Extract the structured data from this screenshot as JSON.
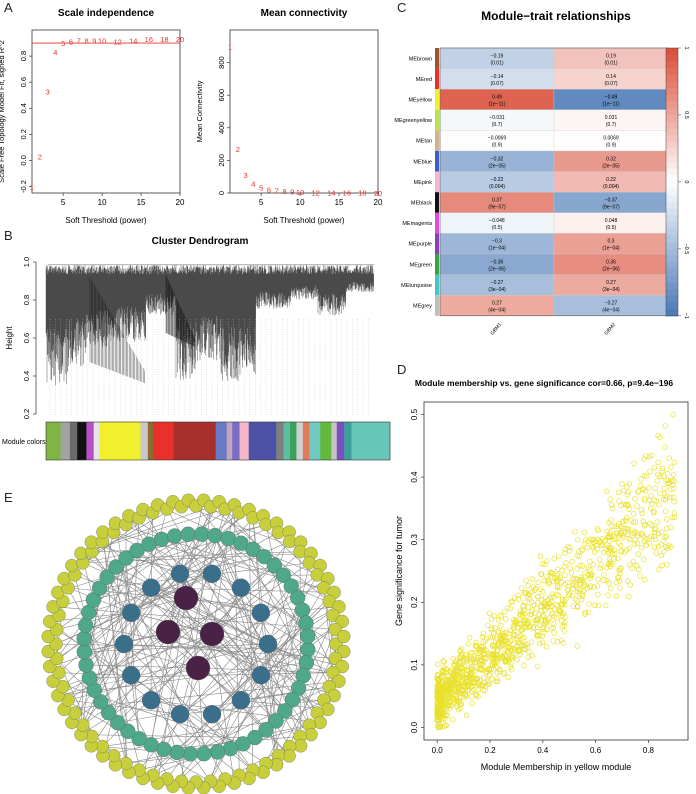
{
  "panel_letters": [
    "A",
    "B",
    "C",
    "D",
    "E"
  ],
  "chart_data": [
    {
      "id": "scale_independence",
      "type": "scatter",
      "title": "Scale independence",
      "xlabel": "Soft Threshold (power)",
      "ylabel": "Scale Free Topology Model Fit, signed R^2",
      "xlim": [
        1,
        20
      ],
      "ylim": [
        -0.25,
        1.0
      ],
      "xticks": [
        "5",
        "10",
        "15",
        "20"
      ],
      "yticks": [
        "-0.2",
        "0.0",
        "0.2",
        "0.4",
        "0.6",
        "0.8"
      ],
      "hline": 0.9,
      "points": [
        {
          "x": 1,
          "y": -0.2,
          "label": "1"
        },
        {
          "x": 2,
          "y": 0.03,
          "label": "2"
        },
        {
          "x": 3,
          "y": 0.53,
          "label": "3"
        },
        {
          "x": 4,
          "y": 0.83,
          "label": "4"
        },
        {
          "x": 5,
          "y": 0.9,
          "label": "5"
        },
        {
          "x": 6,
          "y": 0.91,
          "label": "6"
        },
        {
          "x": 7,
          "y": 0.92,
          "label": "7"
        },
        {
          "x": 8,
          "y": 0.92,
          "label": "8"
        },
        {
          "x": 9,
          "y": 0.92,
          "label": "9"
        },
        {
          "x": 10,
          "y": 0.92,
          "label": "10"
        },
        {
          "x": 12,
          "y": 0.91,
          "label": "12"
        },
        {
          "x": 14,
          "y": 0.92,
          "label": "14"
        },
        {
          "x": 16,
          "y": 0.93,
          "label": "16"
        },
        {
          "x": 18,
          "y": 0.93,
          "label": "18"
        },
        {
          "x": 20,
          "y": 0.93,
          "label": "20"
        }
      ],
      "color": "#e8312a"
    },
    {
      "id": "mean_connectivity",
      "type": "scatter",
      "title": "Mean connectivity",
      "xlabel": "Soft Threshold (power)",
      "ylabel": "Mean Connectivity",
      "xlim": [
        1,
        20
      ],
      "ylim": [
        0,
        1000
      ],
      "xticks": [
        "5",
        "10",
        "15",
        "20"
      ],
      "yticks": [
        "0",
        "200",
        "400",
        "600",
        "800"
      ],
      "points": [
        {
          "x": 1,
          "y": 900,
          "label": "1"
        },
        {
          "x": 2,
          "y": 270,
          "label": "2"
        },
        {
          "x": 3,
          "y": 110,
          "label": "3"
        },
        {
          "x": 4,
          "y": 58,
          "label": "4"
        },
        {
          "x": 5,
          "y": 33,
          "label": "5"
        },
        {
          "x": 6,
          "y": 22,
          "label": "6"
        },
        {
          "x": 7,
          "y": 15,
          "label": "7"
        },
        {
          "x": 8,
          "y": 11,
          "label": "8"
        },
        {
          "x": 9,
          "y": 8,
          "label": "9"
        },
        {
          "x": 10,
          "y": 6,
          "label": "10"
        },
        {
          "x": 12,
          "y": 4,
          "label": "12"
        },
        {
          "x": 14,
          "y": 3,
          "label": "14"
        },
        {
          "x": 16,
          "y": 2,
          "label": "16"
        },
        {
          "x": 18,
          "y": 2,
          "label": "18"
        },
        {
          "x": 20,
          "y": 1,
          "label": "20"
        }
      ],
      "color": "#e8312a"
    },
    {
      "id": "cluster_dendrogram",
      "type": "dendrogram",
      "title": "Cluster Dendrogram",
      "ylabel": "Height",
      "yticks": [
        "0.2",
        "0.4",
        "0.6",
        "0.8",
        "1.0"
      ],
      "ylim": [
        0.2,
        1.0
      ],
      "color_bar_label": "Module colors",
      "module_color_segments": [
        {
          "color": "#7fb545",
          "w": 1.6
        },
        {
          "color": "#a3a3a3",
          "w": 1.0
        },
        {
          "color": "#6b6b6b",
          "w": 0.8
        },
        {
          "color": "#111111",
          "w": 1.0
        },
        {
          "color": "#b84fc8",
          "w": 0.8
        },
        {
          "color": "#e6e6e6",
          "w": 0.6
        },
        {
          "color": "#f2ef2c",
          "w": 4.5
        },
        {
          "color": "#c9c9c9",
          "w": 0.8
        },
        {
          "color": "#8b6b2e",
          "w": 0.6
        },
        {
          "color": "#e8312a",
          "w": 2.2
        },
        {
          "color": "#a8302c",
          "w": 4.6
        },
        {
          "color": "#6a7ac7",
          "w": 1.2
        },
        {
          "color": "#c2a6c2",
          "w": 0.6
        },
        {
          "color": "#7d6dc2",
          "w": 0.8
        },
        {
          "color": "#f5b8cb",
          "w": 1.0
        },
        {
          "color": "#4b52a8",
          "w": 3.0
        },
        {
          "color": "#7f7f7f",
          "w": 0.8
        },
        {
          "color": "#5dbfa0",
          "w": 0.7
        },
        {
          "color": "#3aa25a",
          "w": 0.7
        },
        {
          "color": "#d0d0d0",
          "w": 0.7
        },
        {
          "color": "#e07c5c",
          "w": 0.7
        },
        {
          "color": "#6ec9c0",
          "w": 1.2
        },
        {
          "color": "#65b83e",
          "w": 1.2
        },
        {
          "color": "#c3c3c3",
          "w": 0.6
        },
        {
          "color": "#7b4ec1",
          "w": 0.8
        },
        {
          "color": "#3d9f9b",
          "w": 0.8
        },
        {
          "color": "#68c7b8",
          "w": 4.2
        }
      ]
    },
    {
      "id": "module_trait",
      "type": "heatmap",
      "title": "Module−trait relationships",
      "columns": [
        "GBM1",
        "GBM2"
      ],
      "rows": [
        {
          "module": "MEbrown",
          "swatch": "#a0522d",
          "values": [
            -0.19,
            0.19
          ],
          "labels": [
            "−0.19",
            "0.19"
          ],
          "p": [
            "(0.01)",
            "(0.01)"
          ]
        },
        {
          "module": "MEred",
          "swatch": "#e8312a",
          "values": [
            -0.14,
            0.14
          ],
          "labels": [
            "−0.14",
            "0.14"
          ],
          "p": [
            "(0.07)",
            "(0.07)"
          ]
        },
        {
          "module": "MEyellow",
          "swatch": "#f2ef2c",
          "values": [
            0.49,
            -0.49
          ],
          "labels": [
            "0.49",
            "−0.49"
          ],
          "p": [
            "(1e−11)",
            "(1e−11)"
          ]
        },
        {
          "module": "MEgreenyellow",
          "swatch": "#b8e34a",
          "values": [
            -0.031,
            0.031
          ],
          "labels": [
            "−0.031",
            "0.031"
          ],
          "p": [
            "(0.7)",
            "(0.7)"
          ]
        },
        {
          "module": "MEtan",
          "swatch": "#d2b48c",
          "values": [
            -0.0069,
            0.0069
          ],
          "labels": [
            "−0.0069",
            "0.0069"
          ],
          "p": [
            "(0.9)",
            "(0.9)"
          ]
        },
        {
          "module": "MEblue",
          "swatch": "#3a5fcd",
          "values": [
            -0.32,
            0.32
          ],
          "labels": [
            "−0.32",
            "0.32"
          ],
          "p": [
            "(2e−05)",
            "(2e−05)"
          ]
        },
        {
          "module": "MEpink",
          "swatch": "#f5b8cb",
          "values": [
            -0.22,
            0.22
          ],
          "labels": [
            "−0.22",
            "0.22"
          ],
          "p": [
            "(0.004)",
            "(0.004)"
          ]
        },
        {
          "module": "MEblack",
          "swatch": "#111111",
          "values": [
            0.37,
            -0.37
          ],
          "labels": [
            "0.37",
            "−0.37"
          ],
          "p": [
            "(9e−07)",
            "(9e−07)"
          ]
        },
        {
          "module": "MEmagenta",
          "swatch": "#d94fd9",
          "values": [
            -0.048,
            0.048
          ],
          "labels": [
            "−0.048",
            "0.048"
          ],
          "p": [
            "(0.5)",
            "(0.5)"
          ]
        },
        {
          "module": "MEpurple",
          "swatch": "#8b3fb5",
          "values": [
            -0.3,
            0.3
          ],
          "labels": [
            "−0.3",
            "0.3"
          ],
          "p": [
            "(1e−04)",
            "(1e−04)"
          ]
        },
        {
          "module": "MEgreen",
          "swatch": "#3aa245",
          "values": [
            -0.36,
            0.36
          ],
          "labels": [
            "−0.36",
            "0.36"
          ],
          "p": [
            "(2e−06)",
            "(2e−06)"
          ]
        },
        {
          "module": "MEturquoise",
          "swatch": "#40c9c0",
          "values": [
            -0.27,
            0.27
          ],
          "labels": [
            "−0.27",
            "0.27"
          ],
          "p": [
            "(3e−04)",
            "(3e−04)"
          ]
        },
        {
          "module": "MEgrey",
          "swatch": "#bebebe",
          "values": [
            0.27,
            -0.27
          ],
          "labels": [
            "0.27",
            "−0.27"
          ],
          "p": [
            "(4e−04)",
            "(4e−04)"
          ]
        }
      ],
      "legend_ticks": [
        "1",
        "0.5",
        "0",
        "−0.5",
        "−1"
      ],
      "range": [
        -1,
        1
      ]
    },
    {
      "id": "module_membership",
      "type": "scatter",
      "title": "Module membership vs. gene significance cor=0.66, p=9.4e−196",
      "xlabel": "Module Membership in yellow module",
      "ylabel": "Gene significance for tumor",
      "xlim": [
        -0.05,
        0.95
      ],
      "ylim": [
        -0.02,
        0.52
      ],
      "xticks": [
        "0.0",
        "0.2",
        "0.4",
        "0.6",
        "0.8"
      ],
      "yticks": [
        "0.0",
        "0.1",
        "0.2",
        "0.3",
        "0.4",
        "0.5"
      ],
      "color": "#e9e12a",
      "n_points": 1200,
      "trend": {
        "slope": 0.37,
        "intercept": 0.04,
        "noise": 0.07
      }
    },
    {
      "id": "ppi_network",
      "type": "network",
      "outer_ring_count": 120,
      "middle_ring_count": 52,
      "inner_ring_count": 14,
      "hub_count": 4,
      "outer_color": "#c8cf3c",
      "middle_color": "#4fa889",
      "inner_color": "#3a6f8c",
      "hub_color": "#4a2147",
      "edge_color": "#8a8a8a"
    }
  ]
}
